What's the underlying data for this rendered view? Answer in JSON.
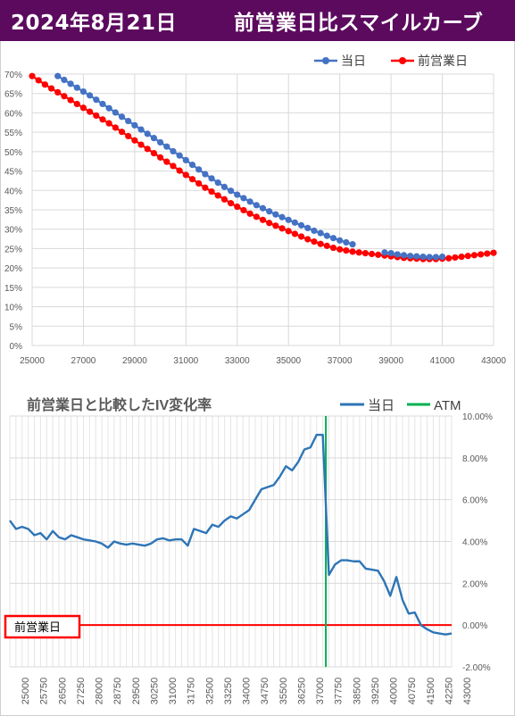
{
  "header": {
    "date": "2024年8月21日",
    "title": "前営業日比スマイルカーブ"
  },
  "colors": {
    "banner": "#5b0a5e",
    "today": "#4472c4",
    "prev_day": "#ff0000",
    "iv_line": "#2e75b6",
    "atm": "#00b050",
    "zero_line": "#ff0000"
  },
  "chart_data": [
    {
      "type": "line",
      "title": "",
      "x": [
        25000,
        25250,
        25500,
        25750,
        26000,
        26250,
        26500,
        26750,
        27000,
        27250,
        27500,
        27750,
        28000,
        28250,
        28500,
        28750,
        29000,
        29250,
        29500,
        29750,
        30000,
        30250,
        30500,
        30750,
        31000,
        31250,
        31500,
        31750,
        32000,
        32250,
        32500,
        32750,
        33000,
        33250,
        33500,
        33750,
        34000,
        34250,
        34500,
        34750,
        35000,
        35250,
        35500,
        35750,
        36000,
        36250,
        36500,
        36750,
        37000,
        37250,
        37500,
        37750,
        38000,
        38250,
        38500,
        38750,
        39000,
        39250,
        39500,
        39750,
        40000,
        40250,
        40500,
        40750,
        41000,
        41250,
        41500,
        41750,
        42000,
        42250,
        42500,
        42750,
        43000
      ],
      "series": [
        {
          "name": "当日",
          "values": [
            null,
            null,
            null,
            null,
            69.5,
            68.5,
            67.5,
            66.5,
            65.5,
            64.5,
            63.4,
            62.3,
            61.2,
            60.1,
            59.0,
            57.9,
            56.8,
            55.7,
            54.6,
            53.5,
            52.4,
            51.3,
            50.1,
            49.0,
            47.8,
            46.6,
            45.4,
            44.2,
            43.1,
            42.0,
            40.9,
            39.9,
            38.9,
            38.0,
            37.1,
            36.2,
            35.4,
            34.6,
            33.8,
            33.1,
            32.4,
            31.7,
            31.0,
            30.3,
            29.6,
            29.0,
            28.3,
            27.7,
            27.1,
            26.6,
            26.1,
            null,
            null,
            null,
            null,
            24.0,
            23.8,
            23.5,
            23.3,
            23.1,
            23.0,
            22.9,
            22.8,
            22.8,
            22.9,
            null,
            null,
            null,
            null,
            null,
            null,
            null,
            null
          ]
        },
        {
          "name": "前営業日",
          "values": [
            69.5,
            68.4,
            67.3,
            66.3,
            65.3,
            64.3,
            63.3,
            62.3,
            61.3,
            60.3,
            59.3,
            58.3,
            57.3,
            56.2,
            55.1,
            54.0,
            52.9,
            51.8,
            50.7,
            49.6,
            48.5,
            47.4,
            46.3,
            45.1,
            44.0,
            42.9,
            41.8,
            40.7,
            39.7,
            38.7,
            37.7,
            36.7,
            35.8,
            34.9,
            34.0,
            33.2,
            32.4,
            31.6,
            30.9,
            30.2,
            29.5,
            28.8,
            28.1,
            27.4,
            26.8,
            26.2,
            25.7,
            25.2,
            24.8,
            24.5,
            24.2,
            24.0,
            23.8,
            23.6,
            23.4,
            23.2,
            23.0,
            22.8,
            22.6,
            22.5,
            22.4,
            22.3,
            22.3,
            22.3,
            22.4,
            22.5,
            22.7,
            22.9,
            23.1,
            23.3,
            23.5,
            23.7,
            23.9
          ]
        }
      ],
      "ylim": [
        0,
        70
      ],
      "yticks": [
        "0%",
        "5%",
        "10%",
        "15%",
        "20%",
        "25%",
        "30%",
        "35%",
        "40%",
        "45%",
        "50%",
        "55%",
        "60%",
        "65%",
        "70%"
      ],
      "xticks": [
        "25000",
        "27000",
        "29000",
        "31000",
        "33000",
        "35000",
        "37000",
        "39000",
        "41000",
        "43000"
      ],
      "xlim": [
        25000,
        43000
      ],
      "grid": true,
      "legend": "top-right"
    },
    {
      "type": "line",
      "title": "前営業日と比較したIV変化率",
      "x": [
        25000,
        25250,
        25500,
        25750,
        26000,
        26250,
        26500,
        26750,
        27000,
        27250,
        27500,
        27750,
        28000,
        28250,
        28500,
        28750,
        29000,
        29250,
        29500,
        29750,
        30000,
        30250,
        30500,
        30750,
        31000,
        31250,
        31500,
        31750,
        32000,
        32250,
        32500,
        32750,
        33000,
        33250,
        33500,
        33750,
        34000,
        34250,
        34500,
        34750,
        35000,
        35250,
        35500,
        35750,
        36000,
        36250,
        36500,
        36750,
        37000,
        37250,
        37500,
        37750,
        38000,
        38250,
        38500,
        38750,
        39000,
        39250,
        39500,
        39750,
        40000,
        40250,
        40500,
        40750,
        41000,
        41250,
        41500,
        41750,
        42000,
        42250,
        42500,
        42750,
        43000
      ],
      "series": [
        {
          "name": "当日",
          "values": [
            5.0,
            4.6,
            4.7,
            4.6,
            4.3,
            4.4,
            4.1,
            4.5,
            4.2,
            4.1,
            4.3,
            4.2,
            4.1,
            4.05,
            4.0,
            3.9,
            3.7,
            4.0,
            3.9,
            3.85,
            3.9,
            3.85,
            3.8,
            3.9,
            4.1,
            4.15,
            4.05,
            4.1,
            4.1,
            3.8,
            4.6,
            4.5,
            4.4,
            4.8,
            4.7,
            5.0,
            5.2,
            5.1,
            5.3,
            5.5,
            6.0,
            6.5,
            6.6,
            6.7,
            7.1,
            7.6,
            7.4,
            7.8,
            8.4,
            8.5,
            9.1,
            9.1,
            2.4,
            2.9,
            3.1,
            3.1,
            3.05,
            3.05,
            2.7,
            2.65,
            2.6,
            2.1,
            1.4,
            2.3,
            1.2,
            0.55,
            0.6,
            0.0,
            -0.2,
            -0.35,
            -0.4,
            -0.45,
            -0.4
          ]
        }
      ],
      "atm": "37875",
      "atm_name": "ATM",
      "ylim": [
        -2,
        10
      ],
      "yticks": [
        "-2.00%",
        "0.00%",
        "2.00%",
        "4.00%",
        "6.00%",
        "8.00%",
        "10.00%"
      ],
      "xticks": [
        "25000",
        "25750",
        "26500",
        "27250",
        "28000",
        "28750",
        "29500",
        "30250",
        "31000",
        "31750",
        "32500",
        "33250",
        "34000",
        "34750",
        "35500",
        "36250",
        "37000",
        "37750",
        "38500",
        "39250",
        "40000",
        "40750",
        "41500",
        "42250",
        "43000"
      ],
      "annotation": "前営業日",
      "grid": true,
      "legend": "top-right"
    }
  ]
}
